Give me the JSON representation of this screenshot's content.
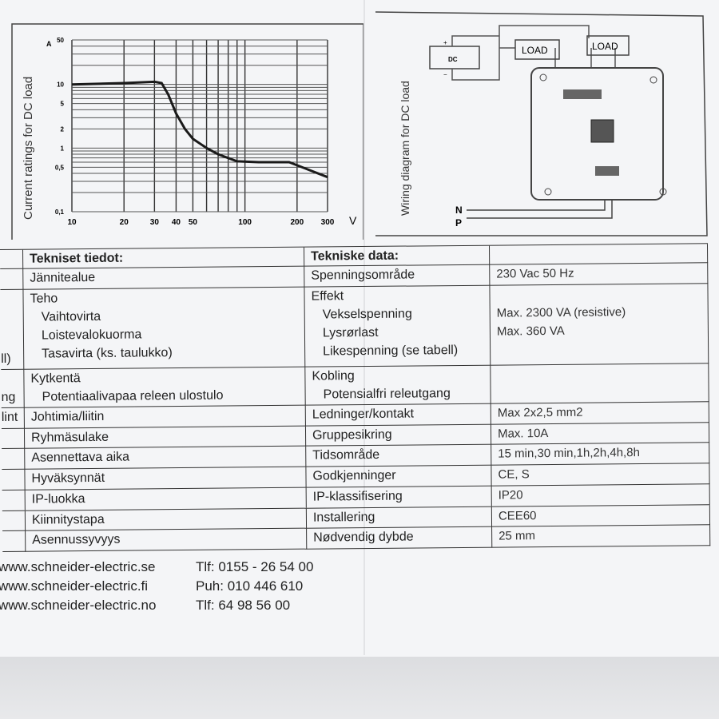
{
  "chart_data": {
    "type": "line",
    "title": "",
    "ylabel": "Current ratings for DC load",
    "yunit": "A",
    "xunit": "V",
    "xscale": "log",
    "yscale": "log",
    "xlim": [
      10,
      300
    ],
    "ylim": [
      0.1,
      50
    ],
    "grid": true,
    "x_tick_labels": [
      "10",
      "20",
      "30",
      "40",
      "50",
      "100",
      "200",
      "300"
    ],
    "y_tick_labels": [
      "0.1",
      "0.5",
      "1",
      "2",
      "5",
      "10",
      "50"
    ],
    "y_tick_label_text": [
      "0,1",
      "0,5",
      "1",
      "2",
      "5",
      "10",
      "50"
    ],
    "series": [
      {
        "x": [
          10,
          20,
          30,
          33,
          36,
          40,
          45,
          50,
          60,
          70,
          90,
          120,
          180,
          300
        ],
        "y": [
          10,
          10.5,
          11,
          10.5,
          7,
          3.5,
          2,
          1.4,
          1.0,
          0.8,
          0.62,
          0.6,
          0.6,
          0.35
        ]
      }
    ],
    "color": "#1a1a1a"
  },
  "wiring": {
    "title": "Wiring diagram for DC load",
    "dc_label": "DC",
    "plus": "+",
    "minus": "−",
    "load1": "LOAD",
    "load2": "LOAD",
    "n_label": "N",
    "p_label": "P"
  },
  "table": {
    "left_fragments": [
      "ll)",
      "ng",
      "lint"
    ],
    "fi_header": "Tekniset tiedot:",
    "no_header": "Tekniske data:",
    "rows": [
      {
        "fi": [
          "Jännitealue"
        ],
        "no": [
          "Spenningsområde"
        ],
        "value": [
          "230 Vac 50 Hz"
        ]
      },
      {
        "fi": [
          "Teho",
          "Vaihtovirta",
          "Loistevalokuorma",
          "Tasavirta (ks. taulukko)"
        ],
        "no": [
          "Effekt",
          "Vekselspenning",
          "Lysrørlast",
          "Likespenning (se tabell)"
        ],
        "value": [
          "",
          "Max. 2300 VA (resistive)",
          "Max. 360 VA"
        ]
      },
      {
        "fi": [
          "Kytkentä",
          "Potentiaalivapaa releen ulostulo"
        ],
        "no": [
          "Kobling",
          "Potensialfri releutgang"
        ],
        "value": [
          ""
        ]
      },
      {
        "fi": [
          "Johtimia/liitin"
        ],
        "no": [
          "Ledninger/kontakt"
        ],
        "value": [
          "Max 2x2,5 mm2"
        ]
      },
      {
        "fi": [
          "Ryhmäsulake"
        ],
        "no": [
          "Gruppesikring"
        ],
        "value": [
          "Max. 10A"
        ]
      },
      {
        "fi": [
          "Asennettava aika"
        ],
        "no": [
          "Tidsområde"
        ],
        "value": [
          "15 min,30 min,1h,2h,4h,8h"
        ]
      },
      {
        "fi": [
          "Hyväksynnät"
        ],
        "no": [
          "Godkjenninger"
        ],
        "value": [
          "CE, S"
        ]
      },
      {
        "fi": [
          "IP-luokka"
        ],
        "no": [
          "IP-klassifisering"
        ],
        "value": [
          "IP20"
        ]
      },
      {
        "fi": [
          "Kiinnitystapa"
        ],
        "no": [
          "Installering"
        ],
        "value": [
          "CEE60"
        ]
      },
      {
        "fi": [
          "Asennussyvyys"
        ],
        "no": [
          "Nødvendig dybde"
        ],
        "value": [
          "25 mm"
        ]
      }
    ]
  },
  "footer": [
    {
      "web": "www.schneider-electric.se",
      "phone": "Tlf: 0155 - 26 54 00"
    },
    {
      "web": "www.schneider-electric.fi",
      "phone": "Puh: 010 446 610"
    },
    {
      "web": "www.schneider-electric.no",
      "phone": "Tlf: 64 98 56 00"
    }
  ]
}
